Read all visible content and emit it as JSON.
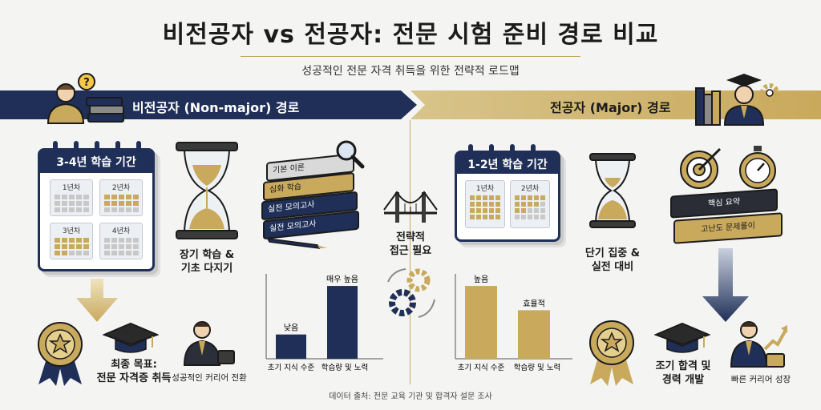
{
  "header": {
    "title": "비전공자 vs 전공자: 전문 시험 준비 경로 비교",
    "subtitle": "성공적인 전문 자격 취득을 위한 전략적 로드맵"
  },
  "colors": {
    "navy": "#1f2f57",
    "gold": "#c9a95c",
    "background": "#f4f4f2"
  },
  "left": {
    "banner": "비전공자 (Non-major) 경로",
    "calendar_title": "3-4년 학습 기간",
    "years": [
      "1년차",
      "2년차",
      "3년차",
      "4년차"
    ],
    "hourglass_label_1": "장기 학습 &",
    "hourglass_label_2": "기초 다지기",
    "books": [
      "기본 이론",
      "심화 학습",
      "실전 모의고사",
      "실전 모의고사"
    ],
    "goal_1": "최종 목표:",
    "goal_2": "전문 자격증 취득",
    "career": "성공적인 커리어 전환",
    "icons": [
      "person-question-icon",
      "stack-books-icon",
      "calendar-icon",
      "hourglass-icon",
      "magnifier-icon",
      "pen-icon",
      "down-arrow-icon",
      "medal-icon",
      "graduation-cap-icon",
      "businessman-icon"
    ]
  },
  "center": {
    "label_1": "전략적",
    "label_2": "접근 필요",
    "icons": [
      "bridge-icon",
      "gears-cycle-icon"
    ]
  },
  "right": {
    "banner": "전공자 (Major) 경로",
    "calendar_title": "1-2년 학습 기간",
    "years": [
      "1년차",
      "2년차"
    ],
    "hourglass_label_1": "단기 집중 &",
    "hourglass_label_2": "실전 대비",
    "books": [
      "핵심 요약",
      "고난도 문제풀이"
    ],
    "goal_1": "조기 합격 및",
    "goal_2": "경력 개발",
    "career": "빠른 커리어 성장",
    "icons": [
      "graduate-icon",
      "gear-icon",
      "books-icon",
      "target-icon",
      "stopwatch-icon",
      "down-arrow-icon",
      "medal-icon",
      "graduation-cap-icon",
      "growth-businessman-icon"
    ]
  },
  "chart_data": [
    {
      "type": "bar",
      "categories": [
        "초기 지식 수준",
        "학습량 및 노력"
      ],
      "values": [
        1,
        3
      ],
      "data_labels": [
        "낮음",
        "매우 높음"
      ],
      "ylim": [
        0,
        3.3
      ],
      "title": "",
      "xlabel": "",
      "ylabel": ""
    },
    {
      "type": "bar",
      "categories": [
        "초기 지식 수준",
        "학습량 및 노력"
      ],
      "values": [
        3,
        2
      ],
      "data_labels": [
        "높음",
        "효율적"
      ],
      "ylim": [
        0,
        3.3
      ],
      "title": "",
      "xlabel": "",
      "ylabel": ""
    }
  ],
  "footer": {
    "source": "데이터 출처: 전문 교육 기관 및 합격자 설문 조사"
  }
}
